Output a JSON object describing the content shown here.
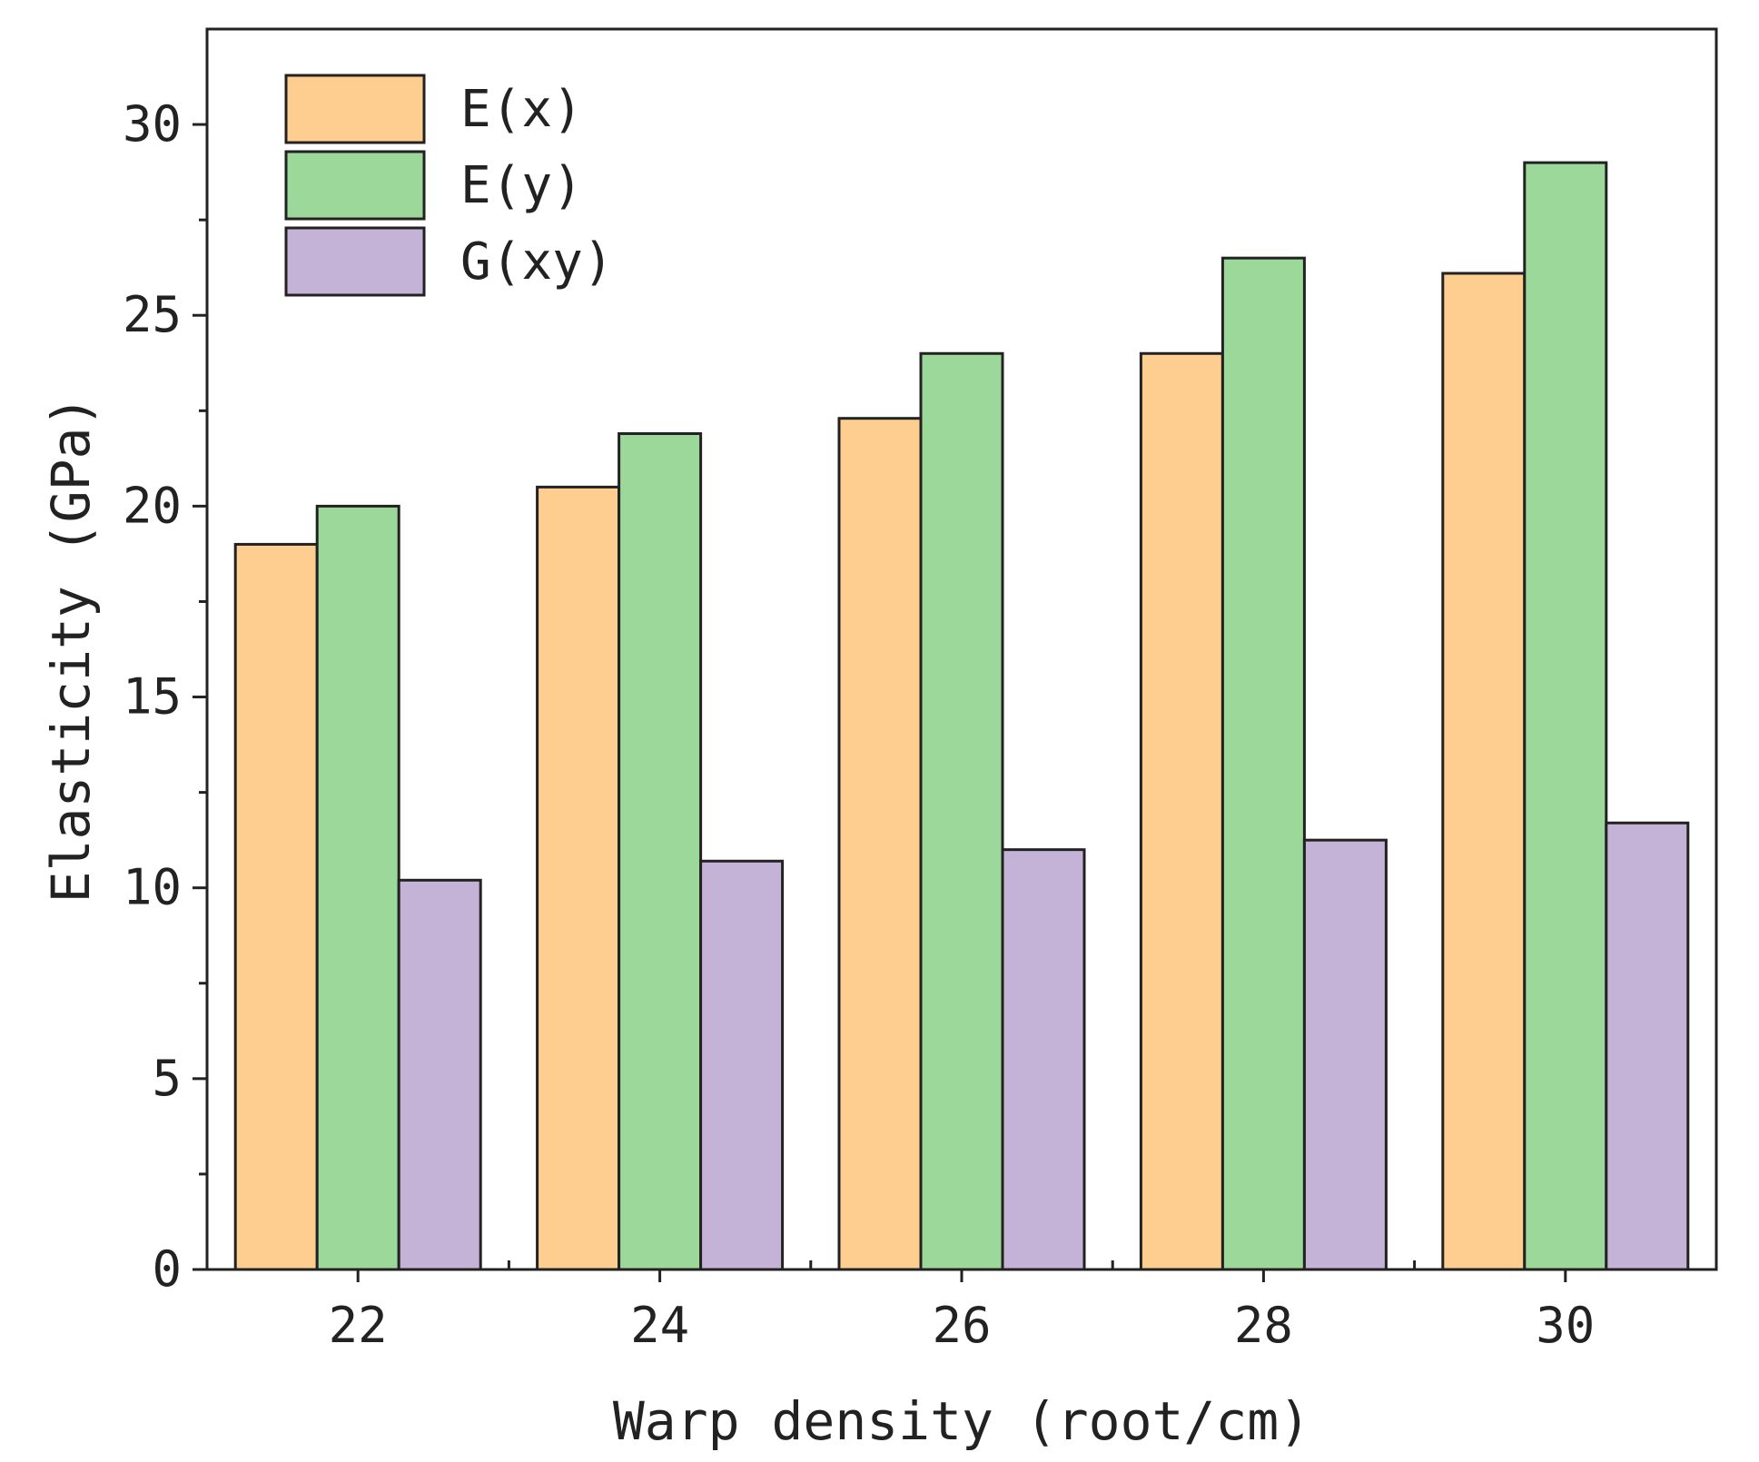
{
  "chart_data": {
    "type": "bar",
    "title": "",
    "xlabel": "Warp density (root/cm)",
    "ylabel": "Elasticity (GPa)",
    "categories": [
      "22",
      "24",
      "26",
      "28",
      "30"
    ],
    "ylim": [
      0,
      32.5
    ],
    "yticks": [
      0,
      5,
      10,
      15,
      20,
      25,
      30
    ],
    "grid": false,
    "legend_position": "top-left",
    "series": [
      {
        "name": "E(x)",
        "color": "#FECE91",
        "values": [
          19.0,
          20.5,
          22.3,
          24.0,
          26.1
        ]
      },
      {
        "name": "E(y)",
        "color": "#9DD89B",
        "values": [
          20.0,
          21.9,
          24.0,
          26.5,
          29.0
        ]
      },
      {
        "name": "G(xy)",
        "color": "#C5B3D7",
        "values": [
          10.2,
          10.7,
          11.0,
          11.25,
          11.7
        ]
      }
    ]
  }
}
